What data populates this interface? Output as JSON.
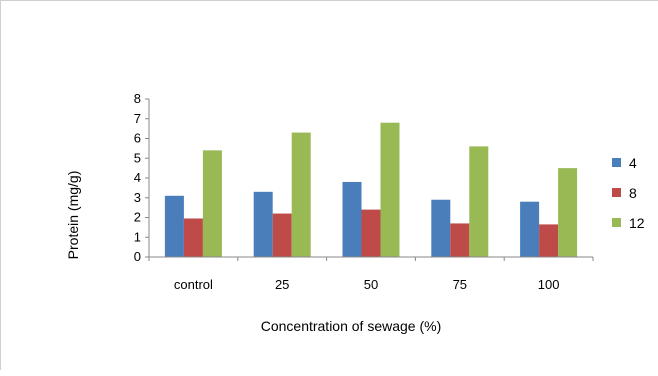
{
  "chart_data": {
    "type": "bar",
    "categories": [
      "control",
      "25",
      "50",
      "75",
      "100"
    ],
    "series": [
      {
        "name": "4",
        "color": "#4a7ebb",
        "values": [
          3.1,
          3.3,
          3.8,
          2.9,
          2.8
        ]
      },
      {
        "name": "8",
        "color": "#be4b48",
        "values": [
          1.95,
          2.2,
          2.4,
          1.7,
          1.65
        ]
      },
      {
        "name": "12",
        "color": "#98b954",
        "values": [
          5.4,
          6.3,
          6.8,
          5.6,
          4.5
        ]
      }
    ],
    "xlabel": "Concentration of sewage (%)",
    "ylabel": "Protein (mg/g)",
    "ylim": [
      0,
      8
    ],
    "yticks": [
      "0",
      "1",
      "2",
      "3",
      "4",
      "5",
      "6",
      "7",
      "8"
    ],
    "grid": false,
    "legend_position": "right"
  }
}
